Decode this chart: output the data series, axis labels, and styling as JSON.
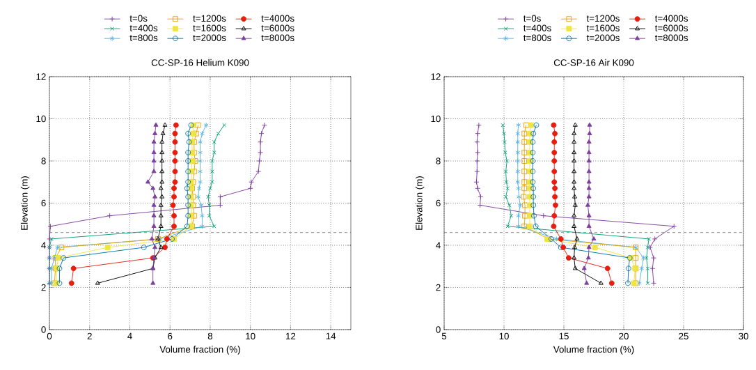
{
  "chart_data": [
    {
      "type": "line",
      "title": "CC-SP-16 Helium K090",
      "xlabel": "Volume fraction (%)",
      "ylabel": "Elevation (m)",
      "xlim": [
        0,
        15
      ],
      "xticks": [
        0,
        2,
        4,
        6,
        8,
        10,
        12,
        14
      ],
      "ylim": [
        0,
        12
      ],
      "yticks": [
        0,
        2,
        4,
        6,
        8,
        10,
        12
      ],
      "grid": true,
      "legend": "top",
      "line_style": "solid",
      "ref_lines": [
        {
          "axis": "y",
          "value": 4.6,
          "color": "#555555",
          "line_style": "dashed"
        }
      ],
      "series": [
        {
          "name": "t=0s",
          "color": "#7e3f9e",
          "marker": "plus",
          "x": [
            10.7,
            10.55,
            10.5,
            10.5,
            10.45,
            10.4,
            10.05,
            10.0,
            8.5,
            8.5,
            3.0,
            0.05,
            0,
            0,
            0,
            0,
            0
          ],
          "values": [
            9.7,
            9.3,
            8.9,
            8.4,
            8.0,
            7.5,
            7.0,
            6.7,
            6.3,
            5.9,
            5.4,
            4.9,
            4.3,
            3.9,
            3.4,
            2.9,
            2.2
          ]
        },
        {
          "name": "t=400s",
          "color": "#009e73",
          "marker": "cross",
          "x": [
            8.7,
            8.4,
            8.2,
            8.2,
            8.1,
            8.1,
            8.1,
            8.0,
            7.9,
            7.95,
            7.95,
            8.2,
            0.1,
            0,
            0,
            0,
            0
          ],
          "values": [
            9.7,
            9.3,
            8.9,
            8.4,
            8.0,
            7.5,
            7.0,
            6.7,
            6.3,
            5.9,
            5.4,
            4.9,
            4.3,
            3.9,
            3.4,
            2.9,
            2.2
          ]
        },
        {
          "name": "t=800s",
          "color": "#56b4e9",
          "marker": "cross",
          "x": [
            7.8,
            7.6,
            7.5,
            7.5,
            7.5,
            7.5,
            7.5,
            7.45,
            7.4,
            7.55,
            7.6,
            7.6,
            5.5,
            0.4,
            0.25,
            0.1,
            0.1
          ],
          "values": [
            9.7,
            9.3,
            8.9,
            8.4,
            8.0,
            7.5,
            7.0,
            6.7,
            6.3,
            5.9,
            5.4,
            4.9,
            4.3,
            3.9,
            3.4,
            2.9,
            2.2
          ]
        },
        {
          "name": "t=1200s",
          "color": "#e69f00",
          "marker": "square",
          "x": [
            7.4,
            7.3,
            7.2,
            7.2,
            7.25,
            7.2,
            7.15,
            7.1,
            7.15,
            7.15,
            7.2,
            7.1,
            5.4,
            0.6,
            0.3,
            0.3,
            0.25
          ],
          "values": [
            9.7,
            9.3,
            8.9,
            8.4,
            8.0,
            7.5,
            7.0,
            6.7,
            6.3,
            5.9,
            5.4,
            4.9,
            4.3,
            3.9,
            3.4,
            2.9,
            2.2
          ]
        },
        {
          "name": "t=1600s",
          "color": "#f0e442",
          "marker": "square",
          "x": [
            7.15,
            7.15,
            7.1,
            7.1,
            7.1,
            7.05,
            7.05,
            7.05,
            7.05,
            7.05,
            7.05,
            7.05,
            6.2,
            2.9,
            0.45,
            0.35,
            0.35
          ],
          "values": [
            9.7,
            9.3,
            8.9,
            8.4,
            8.0,
            7.5,
            7.0,
            6.7,
            6.3,
            5.9,
            5.4,
            4.9,
            4.3,
            3.9,
            3.4,
            2.9,
            2.2
          ]
        },
        {
          "name": "t=2000s",
          "color": "#0072b2",
          "marker": "circle",
          "x": [
            7.05,
            6.9,
            6.95,
            6.9,
            6.9,
            6.9,
            6.9,
            6.85,
            6.9,
            6.9,
            6.9,
            6.85,
            6.1,
            4.7,
            0.7,
            0.5,
            0.5
          ],
          "values": [
            9.7,
            9.3,
            8.9,
            8.4,
            8.0,
            7.5,
            7.0,
            6.7,
            6.3,
            5.9,
            5.4,
            4.9,
            4.3,
            3.9,
            3.4,
            2.9,
            2.2
          ]
        },
        {
          "name": "t=4000s",
          "color": "#e51e10",
          "marker": "circle",
          "x": [
            6.3,
            6.25,
            6.25,
            6.25,
            6.25,
            6.25,
            6.25,
            6.2,
            6.2,
            6.15,
            6.2,
            6.2,
            5.85,
            5.75,
            5.15,
            1.2,
            1.1
          ],
          "values": [
            9.7,
            9.3,
            8.9,
            8.4,
            8.0,
            7.5,
            7.0,
            6.7,
            6.3,
            5.9,
            5.4,
            4.9,
            4.3,
            3.9,
            3.4,
            2.9,
            2.2
          ]
        },
        {
          "name": "t=6000s",
          "color": "#000000",
          "marker": "triangle",
          "x": [
            5.75,
            5.65,
            5.6,
            5.6,
            5.6,
            5.6,
            5.6,
            5.55,
            5.6,
            5.55,
            5.55,
            5.55,
            5.4,
            5.55,
            5.25,
            5.15,
            2.4
          ],
          "values": [
            9.7,
            9.3,
            8.9,
            8.4,
            8.0,
            7.5,
            7.0,
            6.7,
            6.3,
            5.9,
            5.4,
            4.9,
            4.3,
            3.9,
            3.4,
            2.9,
            2.2
          ]
        },
        {
          "name": "t=8000s",
          "color": "#7e3f9e",
          "marker": "triangle",
          "x": [
            5.3,
            5.25,
            5.2,
            5.2,
            5.2,
            5.2,
            4.9,
            5.15,
            5.25,
            5.2,
            5.2,
            5.2,
            5.1,
            5.25,
            5.2,
            5.15,
            5.15
          ],
          "values": [
            9.7,
            9.3,
            8.9,
            8.4,
            8.0,
            7.5,
            7.0,
            6.7,
            6.3,
            5.9,
            5.4,
            4.9,
            4.3,
            3.9,
            3.4,
            2.9,
            2.2
          ]
        }
      ]
    },
    {
      "type": "line",
      "title": "CC-SP-16 Air K090",
      "xlabel": "Volume fraction (%)",
      "ylabel": "Elevation (m)",
      "xlim": [
        5,
        30
      ],
      "xticks": [
        5,
        10,
        15,
        20,
        25,
        30
      ],
      "ylim": [
        0,
        12
      ],
      "yticks": [
        0,
        2,
        4,
        6,
        8,
        10,
        12
      ],
      "grid": true,
      "legend": "top",
      "line_style": "solid",
      "ref_lines": [
        {
          "axis": "y",
          "value": 4.6,
          "color": "#555555",
          "line_style": "dashed"
        }
      ],
      "series": [
        {
          "name": "t=0s",
          "color": "#7e3f9e",
          "marker": "plus",
          "x": [
            7.9,
            7.8,
            7.75,
            7.8,
            7.75,
            7.75,
            7.7,
            7.8,
            8.05,
            8.0,
            13.3,
            24.2,
            22.6,
            22.2,
            22.5,
            22.4,
            22.5
          ],
          "values": [
            9.7,
            9.3,
            8.9,
            8.4,
            8.0,
            7.5,
            7.0,
            6.7,
            6.3,
            5.9,
            5.4,
            4.9,
            4.3,
            3.9,
            3.4,
            2.9,
            2.2
          ]
        },
        {
          "name": "t=400s",
          "color": "#009e73",
          "marker": "cross",
          "x": [
            9.9,
            10.0,
            10.05,
            10.1,
            10.25,
            10.15,
            10.2,
            10.3,
            10.15,
            10.45,
            10.6,
            10.3,
            22.1,
            22.0,
            21.9,
            22.0,
            22.0
          ],
          "values": [
            9.7,
            9.3,
            8.9,
            8.4,
            8.0,
            7.5,
            7.0,
            6.7,
            6.3,
            5.9,
            5.4,
            4.9,
            4.3,
            3.9,
            3.4,
            2.9,
            2.2
          ]
        },
        {
          "name": "t=800s",
          "color": "#56b4e9",
          "marker": "cross",
          "x": [
            11.2,
            11.15,
            11.15,
            11.15,
            11.15,
            11.15,
            11.15,
            11.2,
            11.25,
            11.35,
            11.2,
            11.2,
            14.4,
            21.0,
            21.65,
            21.5,
            21.3
          ],
          "values": [
            9.7,
            9.3,
            8.9,
            8.4,
            8.0,
            7.5,
            7.0,
            6.7,
            6.3,
            5.9,
            5.4,
            4.9,
            4.3,
            3.9,
            3.4,
            2.9,
            2.2
          ]
        },
        {
          "name": "t=1200s",
          "color": "#e69f00",
          "marker": "square",
          "x": [
            11.85,
            11.7,
            11.7,
            11.7,
            11.7,
            11.7,
            11.7,
            11.7,
            11.65,
            11.75,
            11.75,
            11.7,
            13.7,
            21.0,
            21.0,
            21.0,
            21.0
          ],
          "values": [
            9.7,
            9.3,
            8.9,
            8.4,
            8.0,
            7.5,
            7.0,
            6.7,
            6.3,
            5.9,
            5.4,
            4.9,
            4.3,
            3.9,
            3.4,
            2.9,
            2.2
          ]
        },
        {
          "name": "t=1600s",
          "color": "#f0e442",
          "marker": "square",
          "x": [
            12.25,
            12.15,
            12.15,
            12.15,
            12.15,
            12.15,
            12.15,
            12.15,
            12.15,
            12.15,
            12.15,
            12.15,
            13.6,
            17.6,
            20.6,
            20.95,
            20.85
          ],
          "values": [
            9.7,
            9.3,
            8.9,
            8.4,
            8.0,
            7.5,
            7.0,
            6.7,
            6.3,
            5.9,
            5.4,
            4.9,
            4.3,
            3.9,
            3.4,
            2.9,
            2.2
          ]
        },
        {
          "name": "t=2000s",
          "color": "#0072b2",
          "marker": "circle",
          "x": [
            12.7,
            12.45,
            12.4,
            12.4,
            12.4,
            12.4,
            12.4,
            12.45,
            12.45,
            12.45,
            12.5,
            12.65,
            13.95,
            14.75,
            20.5,
            20.4,
            20.35
          ],
          "values": [
            9.7,
            9.3,
            8.9,
            8.4,
            8.0,
            7.5,
            7.0,
            6.7,
            6.3,
            5.9,
            5.4,
            4.9,
            4.3,
            3.9,
            3.4,
            2.9,
            2.2
          ]
        },
        {
          "name": "t=4000s",
          "color": "#e51e10",
          "marker": "circle",
          "x": [
            14.15,
            14.25,
            14.2,
            14.2,
            14.2,
            14.2,
            14.2,
            14.25,
            14.25,
            14.3,
            14.2,
            14.15,
            14.75,
            14.95,
            15.4,
            18.65,
            19.0
          ],
          "values": [
            9.7,
            9.3,
            8.9,
            8.4,
            8.0,
            7.5,
            7.0,
            6.7,
            6.3,
            5.9,
            5.4,
            4.9,
            4.3,
            3.9,
            3.4,
            2.9,
            2.2
          ]
        },
        {
          "name": "t=6000s",
          "color": "#000000",
          "marker": "triangle",
          "x": [
            15.95,
            15.85,
            15.85,
            15.85,
            15.85,
            15.85,
            15.85,
            15.85,
            15.9,
            15.95,
            15.85,
            15.85,
            16.1,
            15.9,
            15.85,
            15.95,
            18.1
          ],
          "values": [
            9.7,
            9.3,
            8.9,
            8.4,
            8.0,
            7.5,
            7.0,
            6.7,
            6.3,
            5.9,
            5.4,
            4.9,
            4.3,
            3.9,
            3.4,
            2.9,
            2.2
          ]
        },
        {
          "name": "t=8000s",
          "color": "#7e3f9e",
          "marker": "triangle",
          "x": [
            17.15,
            17.15,
            17.1,
            17.1,
            17.1,
            17.1,
            17.1,
            17.1,
            17.1,
            17.0,
            17.1,
            17.1,
            17.5,
            17.1,
            17.05,
            16.7,
            16.9
          ],
          "values": [
            9.7,
            9.3,
            8.9,
            8.4,
            8.0,
            7.5,
            7.0,
            6.7,
            6.3,
            5.9,
            5.4,
            4.9,
            4.3,
            3.9,
            3.4,
            2.9,
            2.2
          ]
        }
      ]
    }
  ]
}
